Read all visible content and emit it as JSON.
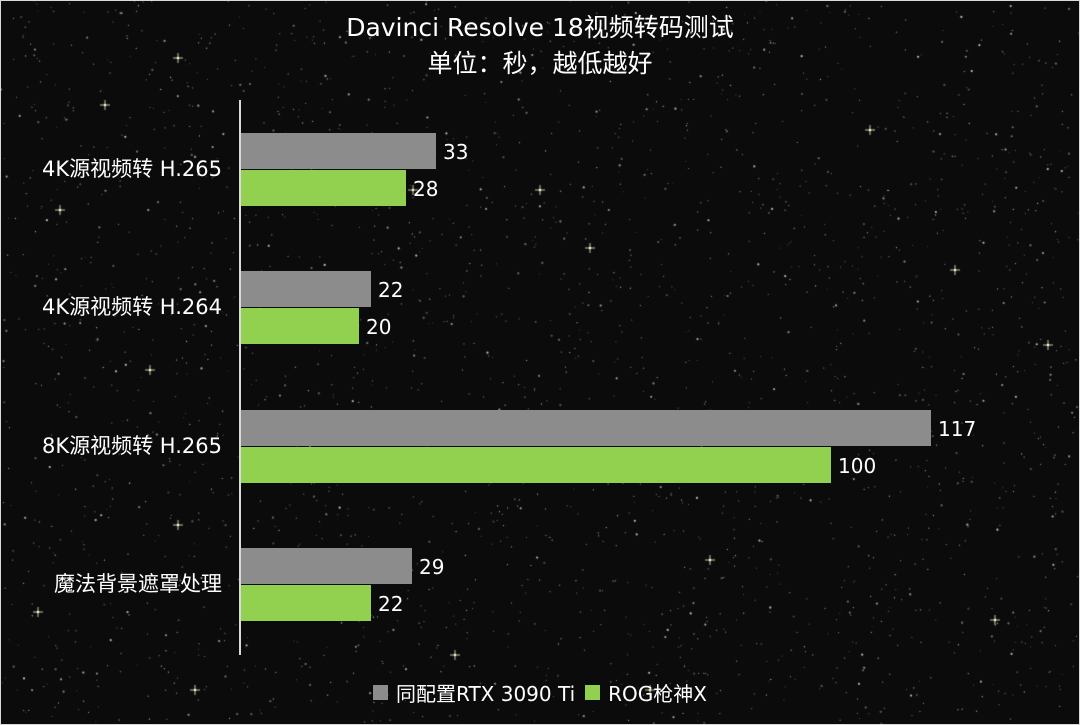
{
  "chart_data": {
    "type": "bar",
    "orientation": "horizontal",
    "title": "Davinci Resolve 18视频转码测试",
    "subtitle": "单位：秒，越低越好",
    "xlabel": "",
    "ylabel": "",
    "categories": [
      "4K源视频转 H.265",
      "4K源视频转 H.264",
      "8K源视频转 H.265",
      "魔法背景遮罩处理"
    ],
    "series": [
      {
        "name": "同配置RTX 3090 Ti",
        "color": "#8c8c8c",
        "values": [
          33,
          22,
          117,
          29
        ]
      },
      {
        "name": "ROG枪神X",
        "color": "#92d050",
        "values": [
          28,
          20,
          100,
          22
        ]
      }
    ],
    "xlim": [
      0,
      120
    ],
    "grid": false,
    "data_labels": true,
    "legend_position": "bottom"
  },
  "title": {
    "line1": "Davinci Resolve 18视频转码测试",
    "line2": "单位：秒，越低越好"
  },
  "legend": [
    {
      "label": "同配置RTX 3090 Ti",
      "color": "#8c8c8c"
    },
    {
      "label": "ROG枪神X",
      "color": "#92d050"
    }
  ]
}
